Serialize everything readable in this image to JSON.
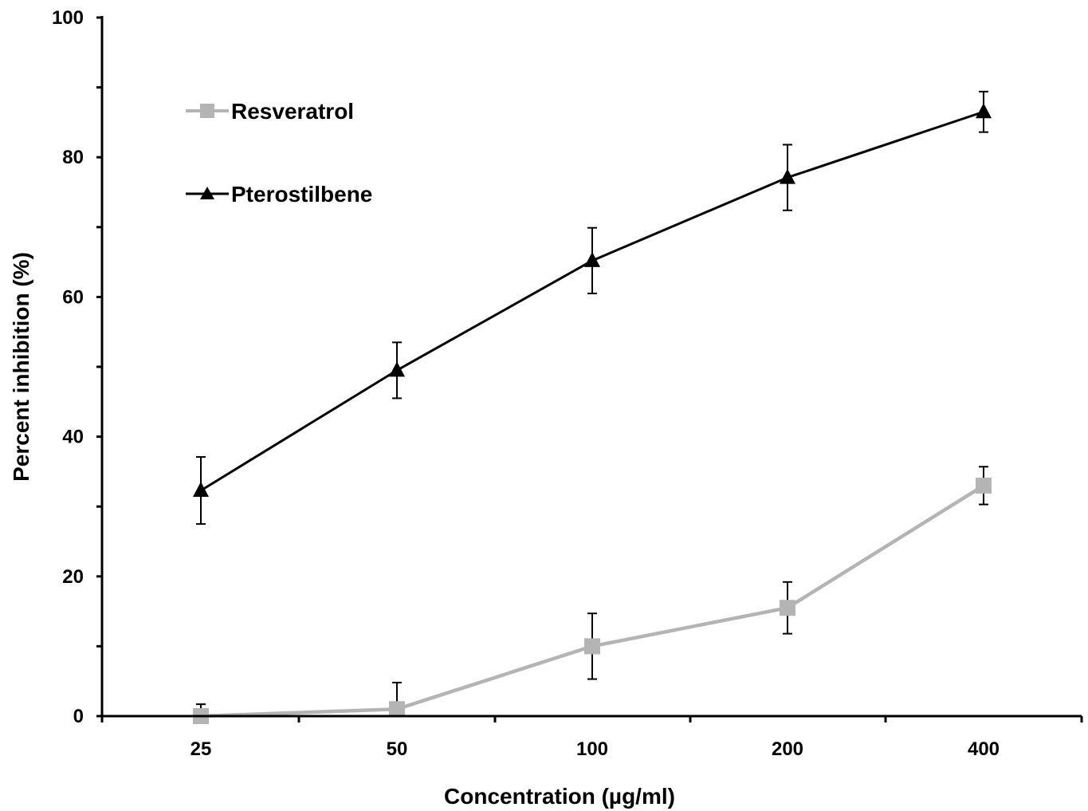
{
  "chart_data": {
    "type": "line",
    "categories": [
      "25",
      "50",
      "100",
      "200",
      "400"
    ],
    "xlabel": "Concentration (µg/ml)",
    "ylabel": "Percent inhibition (%)",
    "ylim": [
      0,
      100
    ],
    "yticks": [
      "0",
      "20",
      "40",
      "60",
      "80",
      "100"
    ],
    "grid": false,
    "legend_position": "top-left",
    "series": [
      {
        "name": "Resveratrol",
        "marker": "square",
        "color": "#b4b4b4",
        "values": [
          0,
          1,
          10,
          15.5,
          33
        ],
        "errors": [
          1.7,
          3.8,
          4.7,
          3.7,
          2.7
        ]
      },
      {
        "name": "Pterostilbene",
        "marker": "triangle",
        "color": "#000000",
        "values": [
          32.3,
          49.5,
          65.2,
          77.1,
          86.5
        ],
        "errors": [
          4.8,
          4.0,
          4.7,
          4.7,
          2.9
        ]
      }
    ]
  }
}
